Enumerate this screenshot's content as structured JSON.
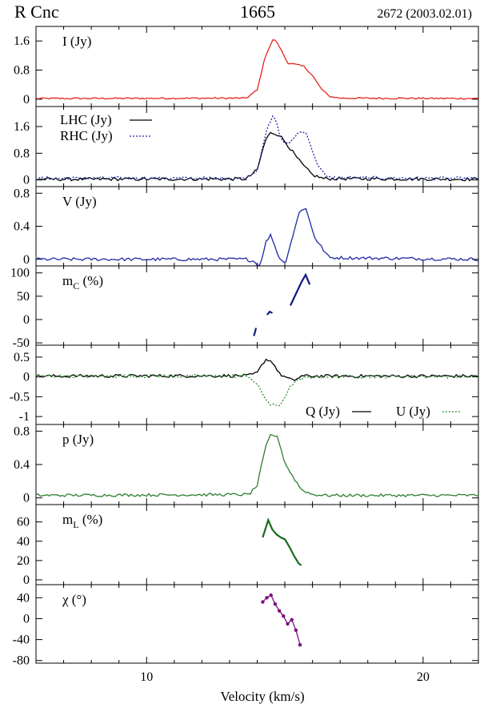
{
  "header": {
    "object": "R Cnc",
    "frequency": "1665",
    "epoch": "2672 (2003.02.01)"
  },
  "xlabel": "Velocity (km/s)",
  "chart_data": [
    {
      "type": "line",
      "label": "I (Jy)",
      "xlim": [
        6,
        22
      ],
      "ylim": [
        -0.2,
        2.0
      ],
      "yticks": [
        "0",
        "0.8",
        "1.6"
      ],
      "yticks_values": [
        0,
        0.8,
        1.6
      ],
      "series": [
        {
          "color": "#e8221c",
          "style": "solid",
          "x": [
            6,
            13.6,
            14.0,
            14.3,
            14.6,
            14.8,
            15.1,
            15.4,
            15.7,
            16.0,
            16.3,
            16.6,
            17,
            22
          ],
          "y": [
            0.02,
            0.03,
            0.25,
            1.2,
            1.68,
            1.45,
            1.0,
            0.95,
            0.9,
            0.65,
            0.3,
            0.08,
            0.03,
            0.02
          ]
        }
      ]
    },
    {
      "type": "line",
      "label": "",
      "xlim": [
        6,
        22
      ],
      "ylim": [
        -0.2,
        2.2
      ],
      "yticks": [
        "0",
        "0.8",
        "1.6"
      ],
      "yticks_values": [
        0,
        0.8,
        1.6
      ],
      "legend": [
        "LHC (Jy)",
        "RHC (Jy)"
      ],
      "series": [
        {
          "name": "LHC (Jy)",
          "color": "#000000",
          "style": "solid",
          "x": [
            6,
            13.6,
            14.0,
            14.3,
            14.5,
            14.8,
            15.1,
            15.4,
            15.7,
            16.0,
            16.4,
            22
          ],
          "y": [
            0.02,
            0.03,
            0.3,
            1.2,
            1.42,
            1.35,
            1.05,
            0.7,
            0.4,
            0.15,
            0.04,
            0.02
          ]
        },
        {
          "name": "RHC (Jy)",
          "color": "#1f2aa8",
          "style": "dotted",
          "x": [
            6,
            13.6,
            14.0,
            14.3,
            14.6,
            14.9,
            15.2,
            15.5,
            15.8,
            16.1,
            16.5,
            22
          ],
          "y": [
            0.05,
            0.05,
            0.3,
            1.4,
            1.95,
            1.15,
            1.1,
            1.45,
            1.4,
            0.6,
            0.07,
            0.04
          ]
        }
      ]
    },
    {
      "type": "line",
      "label": "V (Jy)",
      "xlim": [
        6,
        22
      ],
      "ylim": [
        -0.08,
        0.88
      ],
      "yticks": [
        "0",
        "0.4",
        "0.8"
      ],
      "yticks_values": [
        0,
        0.4,
        0.8
      ],
      "series": [
        {
          "color": "#1f2aa8",
          "style": "solid",
          "x": [
            6,
            13.6,
            13.85,
            14.1,
            14.3,
            14.5,
            14.75,
            15.0,
            15.3,
            15.55,
            15.75,
            16.1,
            16.6,
            22
          ],
          "y": [
            0.0,
            0.0,
            -0.02,
            -0.08,
            0.2,
            0.3,
            0.05,
            -0.06,
            0.3,
            0.6,
            0.62,
            0.25,
            0.02,
            0.0
          ]
        }
      ]
    },
    {
      "type": "line",
      "label": "m_C (%)",
      "xlim": [
        6,
        22
      ],
      "ylim": [
        -55,
        115
      ],
      "yticks": [
        "-50",
        "0",
        "50",
        "100"
      ],
      "yticks_values": [
        -50,
        0,
        50,
        100
      ],
      "series": [
        {
          "color": "#0d1a80",
          "style": "solid",
          "segments": [
            {
              "x": [
                13.88,
                13.96
              ],
              "y": [
                -35,
                -18
              ]
            },
            {
              "x": [
                14.36,
                14.45,
                14.55
              ],
              "y": [
                10,
                17,
                14
              ]
            },
            {
              "x": [
                15.2,
                15.4,
                15.6,
                15.75,
                15.9
              ],
              "y": [
                30,
                55,
                80,
                96,
                75
              ]
            }
          ]
        }
      ]
    },
    {
      "type": "line",
      "label": "",
      "xlim": [
        6,
        22
      ],
      "ylim": [
        -1.2,
        0.8
      ],
      "yticks": [
        "-1",
        "-0.5",
        "0",
        "0.5"
      ],
      "yticks_values": [
        -1,
        -0.5,
        0,
        0.5
      ],
      "legend": [
        "Q (Jy)",
        "U (Jy)"
      ],
      "series": [
        {
          "name": "Q (Jy)",
          "color": "#000000",
          "style": "solid",
          "x": [
            6,
            13.7,
            14.0,
            14.3,
            14.55,
            14.8,
            15.0,
            15.3,
            15.6,
            16.0,
            22
          ],
          "y": [
            0.02,
            0.03,
            0.1,
            0.45,
            0.38,
            0.08,
            0.0,
            -0.1,
            0.02,
            0.02,
            0.02
          ]
        },
        {
          "name": "U (Jy)",
          "color": "#2f8f2f",
          "style": "dotted",
          "x": [
            6,
            13.7,
            14.0,
            14.3,
            14.5,
            14.8,
            15.0,
            15.3,
            15.7,
            16.1,
            22
          ],
          "y": [
            0.02,
            0.02,
            -0.2,
            -0.55,
            -0.72,
            -0.72,
            -0.5,
            -0.15,
            -0.03,
            0.01,
            0.01
          ]
        }
      ]
    },
    {
      "type": "line",
      "label": "p (Jy)",
      "xlim": [
        6,
        22
      ],
      "ylim": [
        -0.08,
        0.88
      ],
      "yticks": [
        "0",
        "0.4",
        "0.8"
      ],
      "yticks_values": [
        0,
        0.4,
        0.8
      ],
      "series": [
        {
          "color": "#2f7f2f",
          "style": "solid",
          "x": [
            6,
            13.7,
            14.0,
            14.3,
            14.5,
            14.75,
            15.0,
            15.3,
            15.6,
            16.0,
            16.5,
            22
          ],
          "y": [
            0.03,
            0.04,
            0.15,
            0.6,
            0.77,
            0.72,
            0.42,
            0.25,
            0.1,
            0.04,
            0.03,
            0.03
          ]
        }
      ]
    },
    {
      "type": "line",
      "label": "m_L (%)",
      "xlim": [
        6,
        22
      ],
      "ylim": [
        -5,
        78
      ],
      "yticks": [
        "0",
        "20",
        "40",
        "60"
      ],
      "yticks_values": [
        0,
        20,
        40,
        60
      ],
      "series": [
        {
          "color": "#1a6b1a",
          "style": "solid",
          "x": [
            14.2,
            14.4,
            14.55,
            14.7,
            14.85,
            15.0,
            15.15,
            15.35,
            15.5,
            15.6
          ],
          "y": [
            44,
            62,
            52,
            47,
            44,
            42,
            35,
            24,
            17,
            15
          ]
        }
      ]
    },
    {
      "type": "line",
      "label": "χ (°)",
      "xlim": [
        6,
        22
      ],
      "ylim": [
        -85,
        65
      ],
      "yticks": [
        "-80",
        "-40",
        "0",
        "40"
      ],
      "yticks_values": [
        -80,
        -40,
        0,
        40
      ],
      "series": [
        {
          "color": "#7a1080",
          "style": "solid-markers",
          "x": [
            14.2,
            14.35,
            14.5,
            14.65,
            14.8,
            14.95,
            15.1,
            15.25,
            15.4,
            15.55
          ],
          "y": [
            32,
            40,
            45,
            28,
            15,
            5,
            -10,
            -2,
            -22,
            -50
          ]
        }
      ]
    }
  ],
  "xaxis": {
    "ticks": [
      "10",
      "20"
    ],
    "ticks_values": [
      10,
      20
    ],
    "minor_step": 1
  }
}
